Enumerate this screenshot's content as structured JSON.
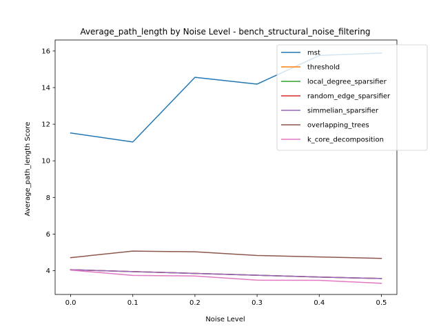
{
  "chart_data": {
    "type": "line",
    "title": "Average_path_length by Noise Level - bench_structural_noise_filtering",
    "xlabel": "Noise Level",
    "ylabel": "Average_path_length Score",
    "x": [
      0.0,
      0.1,
      0.2,
      0.3,
      0.4,
      0.5
    ],
    "x_ticks": [
      "0.0",
      "0.1",
      "0.2",
      "0.3",
      "0.4",
      "0.5"
    ],
    "y_ticks": [
      "4",
      "6",
      "8",
      "10",
      "12",
      "14",
      "16"
    ],
    "xlim": [
      -0.025,
      0.525
    ],
    "ylim": [
      2.7,
      16.6
    ],
    "grid": false,
    "legend_position": "upper right",
    "series": [
      {
        "name": "mst",
        "color": "#1f77b4",
        "values": [
          11.52,
          11.03,
          14.56,
          14.19,
          15.75,
          15.89
        ]
      },
      {
        "name": "threshold",
        "color": "#ff7f0e",
        "values": [
          4.05,
          3.95,
          3.85,
          3.75,
          3.65,
          3.57
        ]
      },
      {
        "name": "local_degree_sparsifier",
        "color": "#2ca02c",
        "values": [
          4.05,
          3.95,
          3.85,
          3.75,
          3.65,
          3.57
        ]
      },
      {
        "name": "random_edge_sparsifier",
        "color": "#d62728",
        "values": [
          4.05,
          3.95,
          3.85,
          3.75,
          3.65,
          3.57
        ]
      },
      {
        "name": "simmelian_sparsifier",
        "color": "#9467bd",
        "values": [
          4.05,
          3.95,
          3.85,
          3.75,
          3.65,
          3.57
        ]
      },
      {
        "name": "overlapping_trees",
        "color": "#8c564b",
        "values": [
          4.71,
          5.07,
          5.03,
          4.83,
          4.75,
          4.67
        ]
      },
      {
        "name": "k_core_decomposition",
        "color": "#e377c2",
        "values": [
          4.03,
          3.74,
          3.71,
          3.48,
          3.47,
          3.31
        ]
      }
    ]
  }
}
